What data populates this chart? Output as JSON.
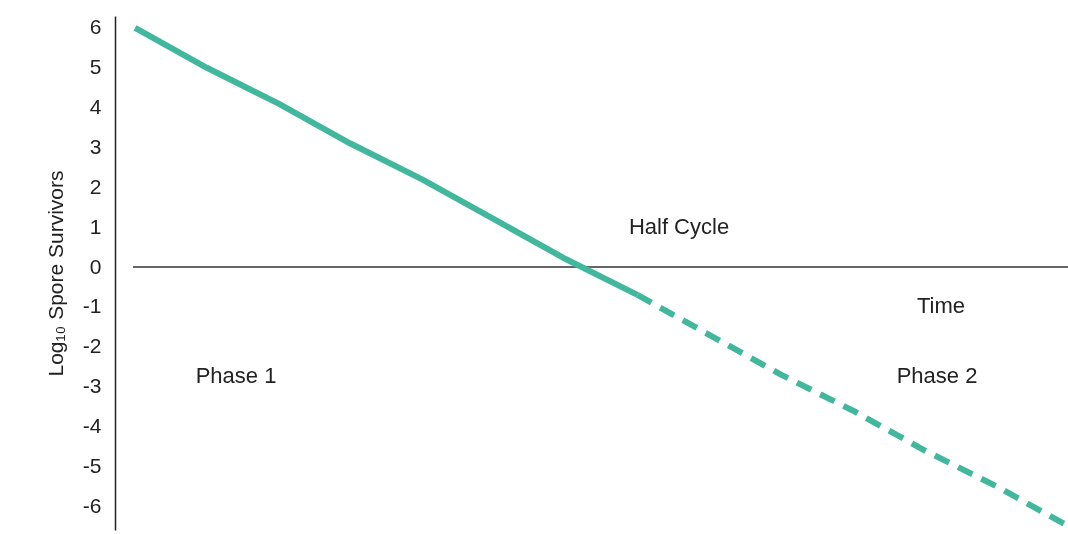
{
  "chart_data": {
    "type": "line",
    "xlabel": "Time",
    "ylabel": "Log₁₀ Spore Survivors",
    "categories": [
      null,
      null,
      null,
      null,
      null,
      null,
      null,
      null,
      null,
      null,
      null,
      null,
      null,
      null
    ],
    "series": [
      {
        "color": "#41b79d",
        "line_style": "solid",
        "values": [
          6,
          5.0,
          4.1,
          3.1,
          2.2,
          1.2,
          0.2,
          -0.7,
          null,
          null,
          null,
          null,
          null,
          null
        ]
      },
      {
        "color": "#41b79d",
        "line_style": "dashed",
        "values": [
          null,
          null,
          null,
          null,
          null,
          null,
          null,
          -0.7,
          -1.7,
          -2.7,
          -3.6,
          -4.6,
          -5.5,
          -6.5
        ]
      }
    ],
    "ylim": [
      -6.6,
      6.3
    ],
    "yticks": [
      -6,
      -5,
      -4,
      -3,
      -2,
      -1,
      0,
      1,
      2,
      3,
      4,
      5,
      6
    ],
    "ref_lines": [
      {
        "axis": "y",
        "value": 0,
        "color": "#333333"
      }
    ],
    "annotations": [
      "Half Cycle",
      "Phase 1",
      "Phase 2"
    ],
    "tick_labels": "y",
    "grid": false,
    "marker": "none"
  }
}
